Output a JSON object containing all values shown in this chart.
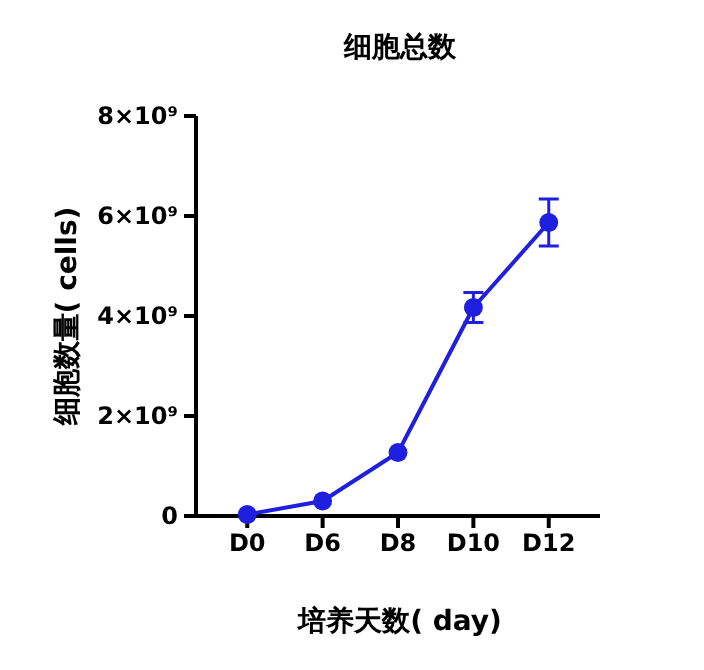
{
  "chart_data": {
    "type": "line",
    "title": "细胞总数",
    "xlabel": "培养天数( day)",
    "ylabel": "细胞数量( cells)",
    "categories": [
      "D0",
      "D6",
      "D8",
      "D10",
      "D12"
    ],
    "series": [
      {
        "color": "#1f1fe0",
        "values": [
          30000000,
          300000000,
          1270000000,
          4170000000,
          5870000000
        ],
        "errors": [
          null,
          null,
          null,
          300000000,
          470000000
        ]
      }
    ],
    "ylim": [
      0,
      8000000000
    ],
    "yticks": [
      0,
      {
        "value": 2000000000,
        "label": "2×10⁹"
      },
      {
        "value": 4000000000,
        "label": "4×10⁹"
      },
      {
        "value": 6000000000,
        "label": "6×10⁹"
      },
      {
        "value": 8000000000,
        "label": "8×10⁹"
      }
    ],
    "marker": "circle",
    "line_style": "solid"
  }
}
